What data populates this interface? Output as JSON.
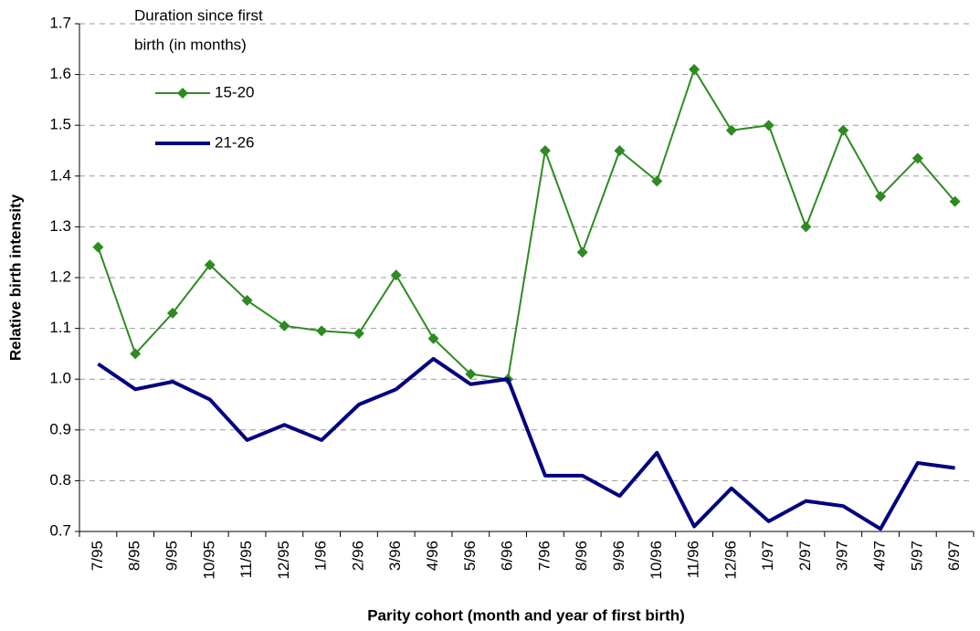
{
  "chart_data": {
    "type": "line",
    "legend_title": [
      "Duration since first",
      "birth (in months)"
    ],
    "x_label": "Parity cohort (month and year of first birth)",
    "y_label": "Relative birth intensity",
    "categories": [
      "7/95",
      "8/95",
      "9/95",
      "10/95",
      "11/95",
      "12/95",
      "1/96",
      "2/96",
      "3/96",
      "4/96",
      "5/96",
      "6/96",
      "7/96",
      "8/96",
      "9/96",
      "10/96",
      "11/96",
      "12/96",
      "1/97",
      "2/97",
      "3/97",
      "4/97",
      "5/97",
      "6/97"
    ],
    "series": [
      {
        "name": "15-20",
        "color": "#2e8b22",
        "marker": "diamond",
        "line_width": 2,
        "values": [
          1.26,
          1.05,
          1.13,
          1.225,
          1.155,
          1.105,
          1.095,
          1.09,
          1.205,
          1.08,
          1.01,
          1.0,
          1.45,
          1.25,
          1.45,
          1.39,
          1.61,
          1.49,
          1.5,
          1.3,
          1.49,
          1.36,
          1.435,
          1.35
        ]
      },
      {
        "name": "21-26",
        "color": "#000080",
        "marker": "none",
        "line_width": 4,
        "values": [
          1.03,
          0.98,
          0.995,
          0.96,
          0.88,
          0.91,
          0.88,
          0.95,
          0.98,
          1.04,
          0.99,
          1.0,
          0.81,
          0.81,
          0.77,
          0.855,
          0.71,
          0.785,
          0.72,
          0.76,
          0.75,
          0.705,
          0.835,
          0.825
        ]
      }
    ],
    "ylim": [
      0.7,
      1.7
    ],
    "yticks": [
      0.7,
      0.8,
      0.9,
      {
        "value": 1,
        "label": "1.0"
      },
      1.1,
      1.2,
      1.3,
      1.4,
      1.5,
      1.6,
      1.7
    ],
    "grid": true
  }
}
